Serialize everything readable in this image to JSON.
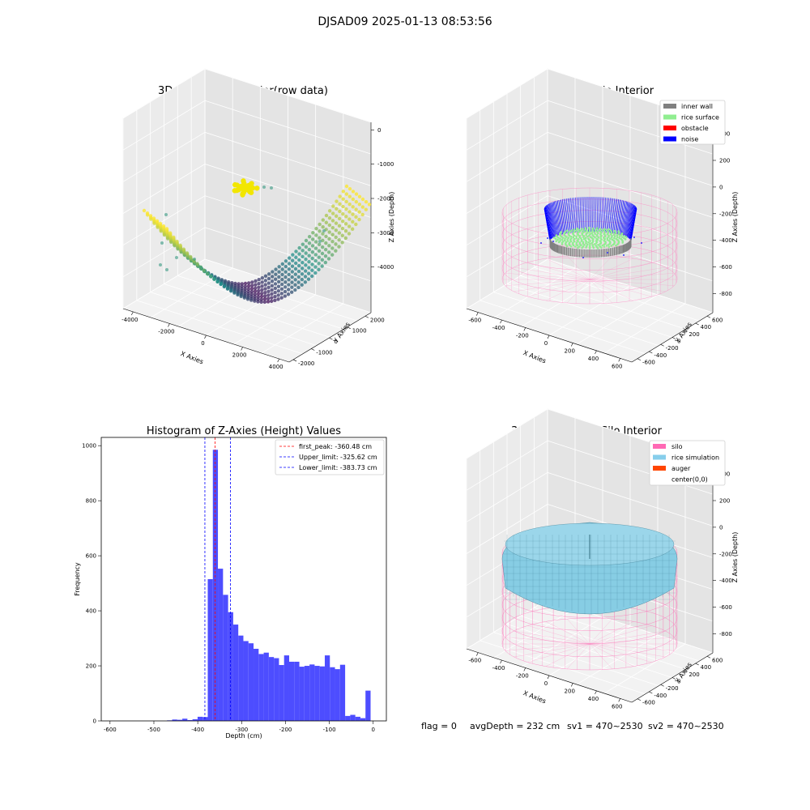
{
  "figure": {
    "suptitle": "DJSAD09 2025-01-13 08:53:56",
    "footer": {
      "flag": "flag = 0",
      "avg_depth": "avgDepth = 232 cm",
      "sv1": "sv1 = 470~2530",
      "sv2": "sv2 = 470~2530"
    }
  },
  "chart_data": [
    {
      "type": "scatter",
      "title": "3D Plot of Silo Interior(row data)",
      "xlabel": "X Axies",
      "ylabel": "Y Axies",
      "zlabel": "Z Axies (Depth)",
      "x_ticks": [
        "-4000",
        "-2000",
        "0",
        "2000",
        "4000"
      ],
      "y_ticks": [
        "-2000",
        "-1000",
        "0",
        "1000",
        "2000"
      ],
      "z_ticks": [
        "0",
        "-1000",
        "-2000",
        "-3000",
        "-4000"
      ],
      "xlim": [
        -4500,
        4500
      ],
      "ylim": [
        -2200,
        2200
      ],
      "zlim": [
        -4500,
        200
      ],
      "colormap": "viridis",
      "colors": {
        "low": "#440154",
        "mid": "#21918c",
        "high": "#fde725",
        "yellow": "#f2e600"
      }
    },
    {
      "type": "scatter",
      "title": "3D classify of Silo Interior",
      "xlabel": "X Axies",
      "ylabel": "Y Axies",
      "zlabel": "Z Axies (Depth)",
      "x_ticks": [
        "-600",
        "-400",
        "-200",
        "0",
        "200",
        "400",
        "600"
      ],
      "y_ticks": [
        "-600",
        "-400",
        "-200",
        "0",
        "200",
        "400",
        "600"
      ],
      "z_ticks": [
        "400",
        "200",
        "0",
        "-200",
        "-400",
        "-600",
        "-800"
      ],
      "legend": [
        {
          "label": "inner wall",
          "color": "#808080"
        },
        {
          "label": "rice surface",
          "color": "#90ee90"
        },
        {
          "label": "obstacle",
          "color": "#ff0000"
        },
        {
          "label": "noise",
          "color": "#0000ff"
        }
      ],
      "legend_position": "top-right",
      "wire_color": "#ff80c0"
    },
    {
      "type": "bar",
      "title": "Histogram of Z-Axies (Height) Values",
      "xlabel": "Depth (cm)",
      "ylabel": "Frequency",
      "xlim": [
        -620,
        30
      ],
      "ylim": [
        0,
        1030
      ],
      "x_ticks": [
        -600,
        -500,
        -400,
        -300,
        -200,
        -100,
        0
      ],
      "y_ticks": [
        0,
        200,
        400,
        600,
        800,
        1000
      ],
      "bin_width": 11.6,
      "bins": [
        {
          "x": -470,
          "v": 2
        },
        {
          "x": -458.4,
          "v": 5
        },
        {
          "x": -446.8,
          "v": 4
        },
        {
          "x": -435.2,
          "v": 8
        },
        {
          "x": -423.6,
          "v": 3
        },
        {
          "x": -412,
          "v": 6
        },
        {
          "x": -400.4,
          "v": 15
        },
        {
          "x": -388.8,
          "v": 14
        },
        {
          "x": -377.2,
          "v": 515
        },
        {
          "x": -365.6,
          "v": 985
        },
        {
          "x": -354,
          "v": 553
        },
        {
          "x": -342.4,
          "v": 458
        },
        {
          "x": -330.8,
          "v": 395
        },
        {
          "x": -319.2,
          "v": 350
        },
        {
          "x": -307.6,
          "v": 310
        },
        {
          "x": -296,
          "v": 290
        },
        {
          "x": -284.4,
          "v": 282
        },
        {
          "x": -272.8,
          "v": 262
        },
        {
          "x": -261.2,
          "v": 243
        },
        {
          "x": -249.6,
          "v": 248
        },
        {
          "x": -238,
          "v": 232
        },
        {
          "x": -226.4,
          "v": 228
        },
        {
          "x": -214.8,
          "v": 203
        },
        {
          "x": -203.2,
          "v": 238
        },
        {
          "x": -191.6,
          "v": 215
        },
        {
          "x": -180,
          "v": 215
        },
        {
          "x": -168.4,
          "v": 197
        },
        {
          "x": -156.8,
          "v": 200
        },
        {
          "x": -145.2,
          "v": 205
        },
        {
          "x": -133.6,
          "v": 200
        },
        {
          "x": -122,
          "v": 198
        },
        {
          "x": -110.4,
          "v": 238
        },
        {
          "x": -98.8,
          "v": 195
        },
        {
          "x": -87.2,
          "v": 188
        },
        {
          "x": -75.6,
          "v": 204
        },
        {
          "x": -64,
          "v": 18
        },
        {
          "x": -52.4,
          "v": 22
        },
        {
          "x": -40.8,
          "v": 15
        },
        {
          "x": -29.2,
          "v": 10
        },
        {
          "x": -17.6,
          "v": 110
        }
      ],
      "bar_color": "#4d4dff",
      "vlines": [
        {
          "x": -360.48,
          "color": "#ff0000",
          "label": "first_peak: -360.48 cm"
        },
        {
          "x": -325.62,
          "color": "#0000ff",
          "label": "Upper_limit: -325.62 cm"
        },
        {
          "x": -383.73,
          "color": "#0000ff",
          "label": "Lower_limit: -383.73 cm"
        }
      ],
      "legend_position": "top-right"
    },
    {
      "type": "surface",
      "title": "3D simulation of Silo Interior",
      "xlabel": "X Axies",
      "ylabel": "Y Axies",
      "zlabel": "Z Axies (Depth)",
      "x_ticks": [
        "-600",
        "-400",
        "-200",
        "0",
        "200",
        "400",
        "600"
      ],
      "y_ticks": [
        "-600",
        "-400",
        "-200",
        "0",
        "200",
        "400",
        "600"
      ],
      "z_ticks": [
        "400",
        "200",
        "0",
        "-200",
        "-400",
        "-600",
        "-800"
      ],
      "legend": [
        {
          "label": "silo",
          "color": "#ff69b4"
        },
        {
          "label": "rice simulation",
          "color": "#87ceeb"
        },
        {
          "label": "auger",
          "color": "#ff4500"
        },
        {
          "label": "center(0,0)",
          "color": "#ffffff"
        }
      ],
      "legend_position": "top-right",
      "surface_color": "#87cde4"
    }
  ]
}
